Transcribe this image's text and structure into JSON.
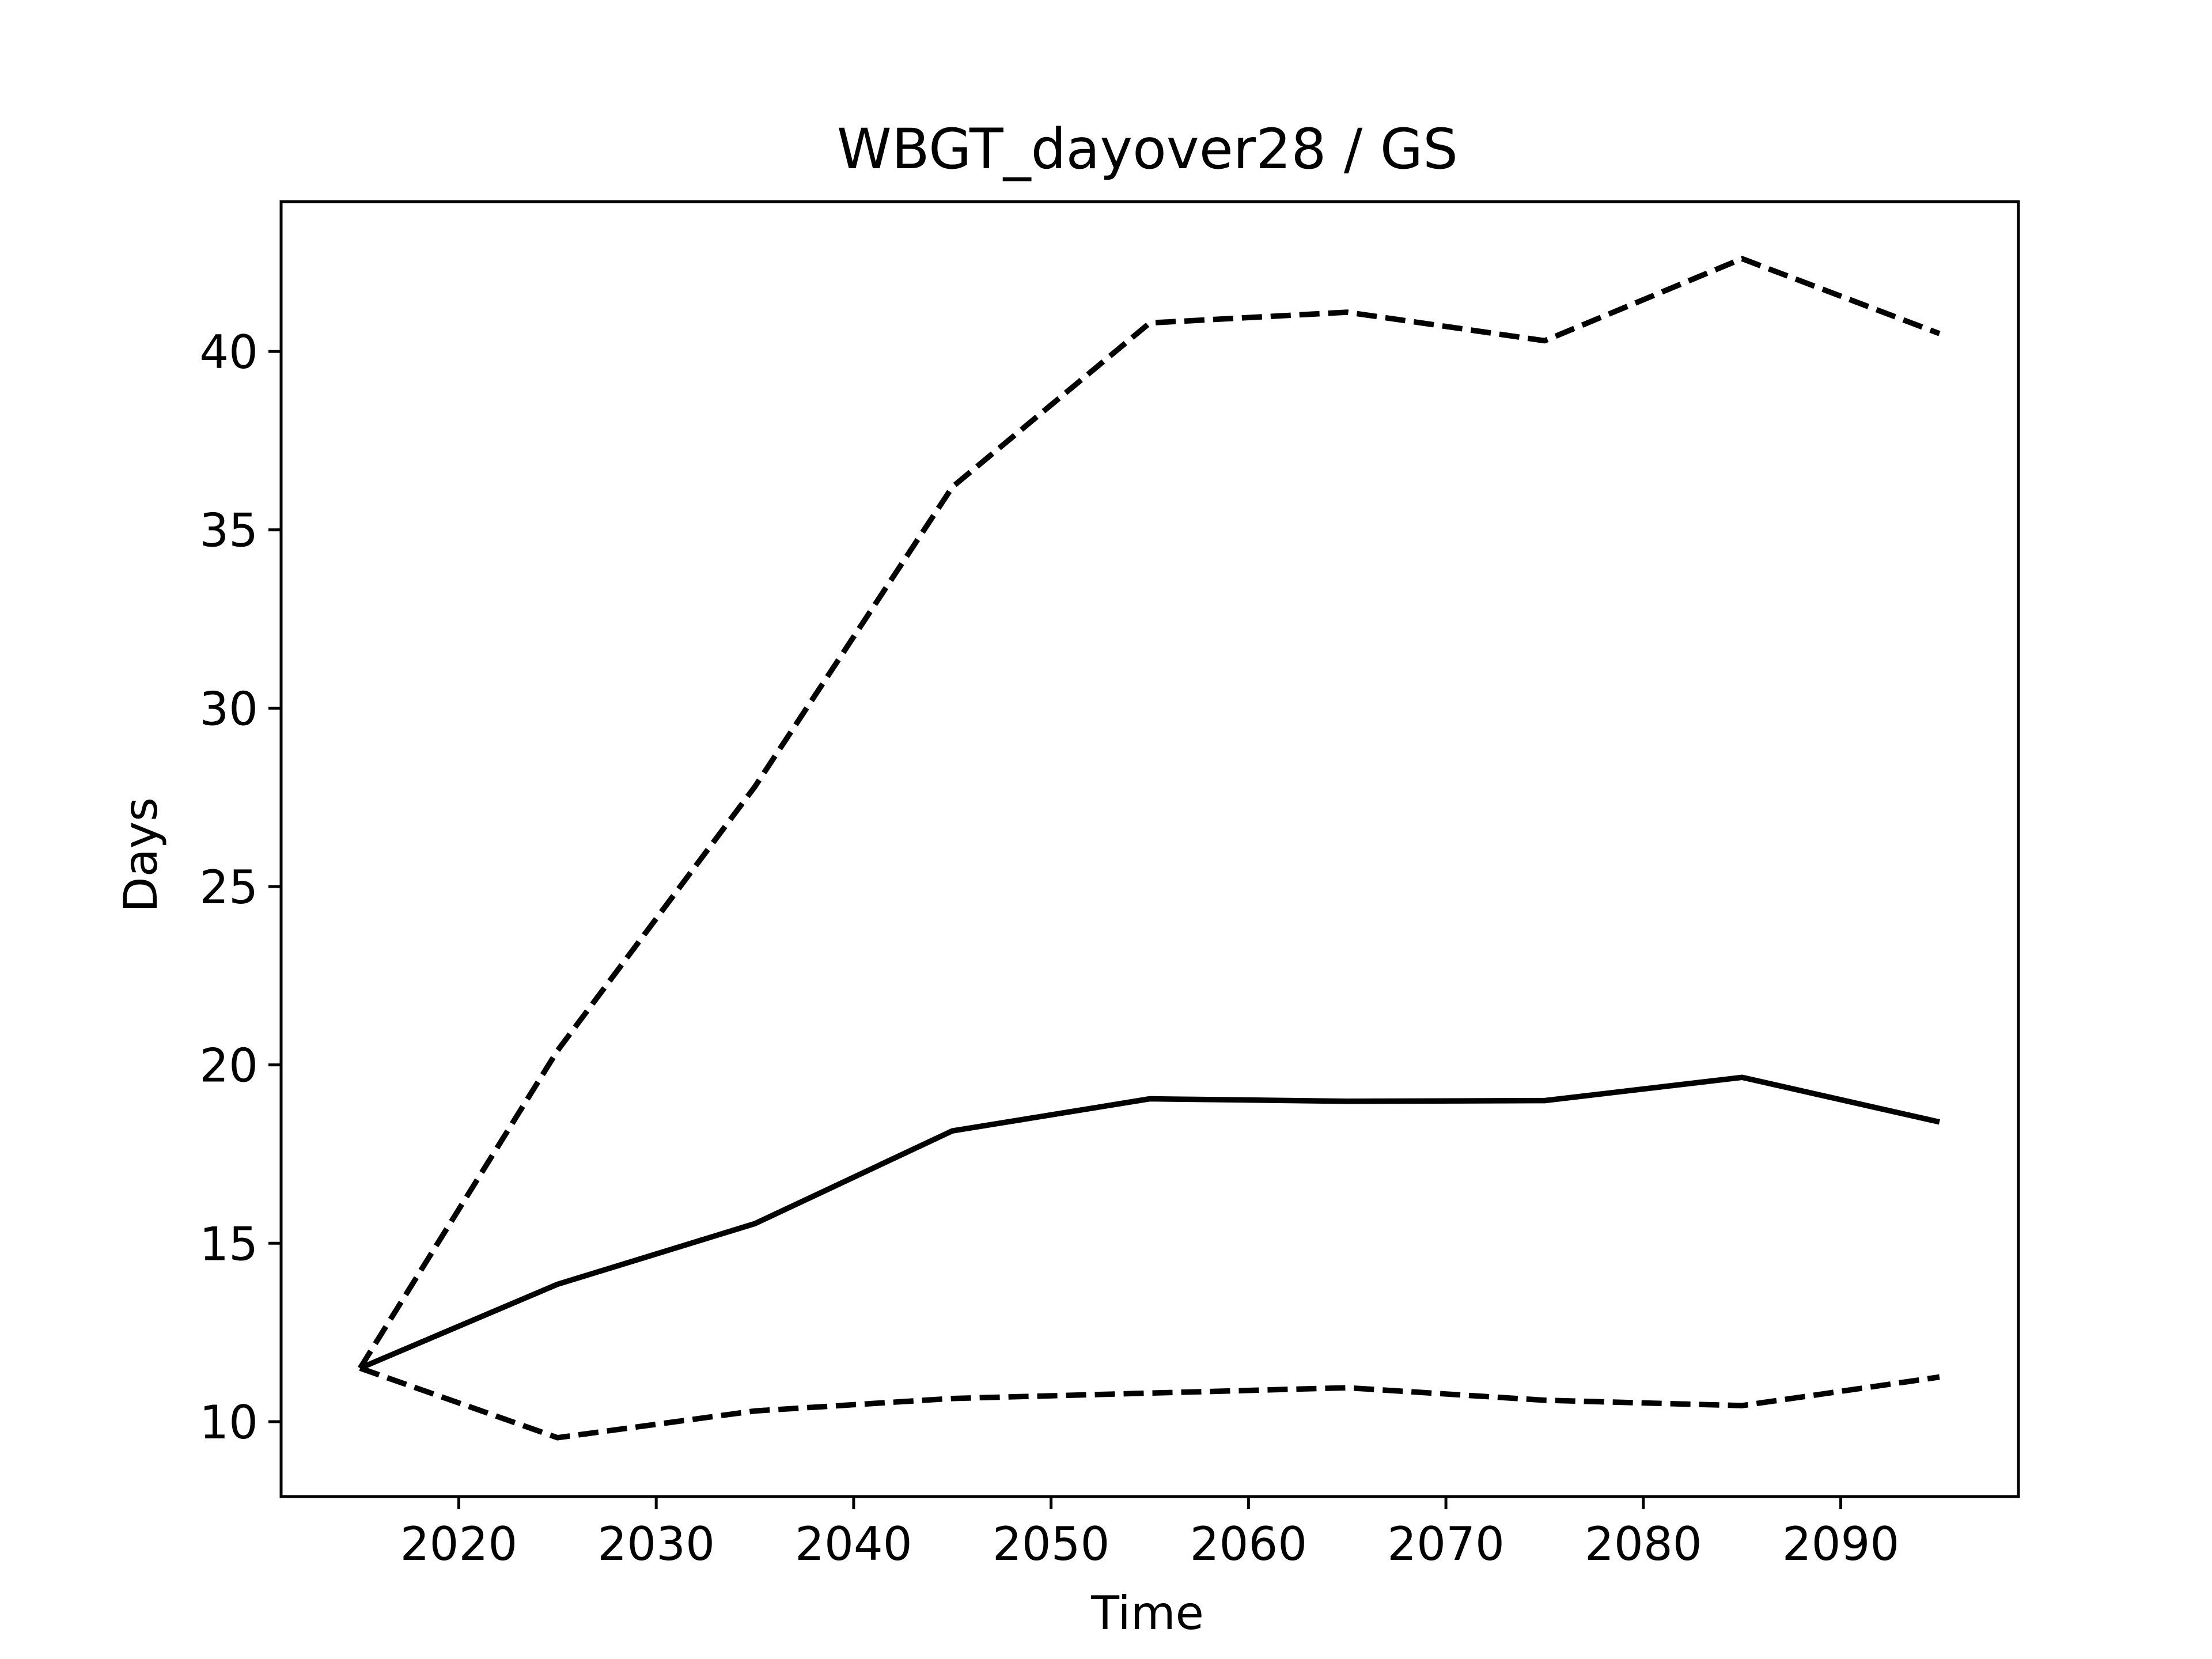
{
  "chart_data": {
    "type": "line",
    "title": "WBGT_dayover28 / GS",
    "xlabel": "Time",
    "ylabel": "Days",
    "xlim": [
      2011,
      2099
    ],
    "ylim": [
      7.9,
      44.2
    ],
    "xticks": [
      2020,
      2030,
      2040,
      2050,
      2060,
      2070,
      2080,
      2090
    ],
    "yticks": [
      10,
      15,
      20,
      25,
      30,
      35,
      40
    ],
    "grid": false,
    "legend": "none",
    "x": [
      2015,
      2025,
      2035,
      2045,
      2055,
      2065,
      2075,
      2085,
      2095
    ],
    "series": [
      {
        "style": "solid",
        "color": "#000000",
        "values": [
          11.5,
          13.85,
          15.55,
          18.15,
          19.05,
          18.98,
          19.0,
          19.65,
          18.4
        ]
      },
      {
        "style": "dashed",
        "color": "#000000",
        "values": [
          11.5,
          20.4,
          27.8,
          36.2,
          40.8,
          41.1,
          40.3,
          42.6,
          40.5
        ]
      },
      {
        "style": "dashed",
        "color": "#000000",
        "values": [
          11.5,
          9.55,
          10.3,
          10.65,
          10.8,
          10.95,
          10.6,
          10.45,
          11.25
        ]
      }
    ]
  }
}
